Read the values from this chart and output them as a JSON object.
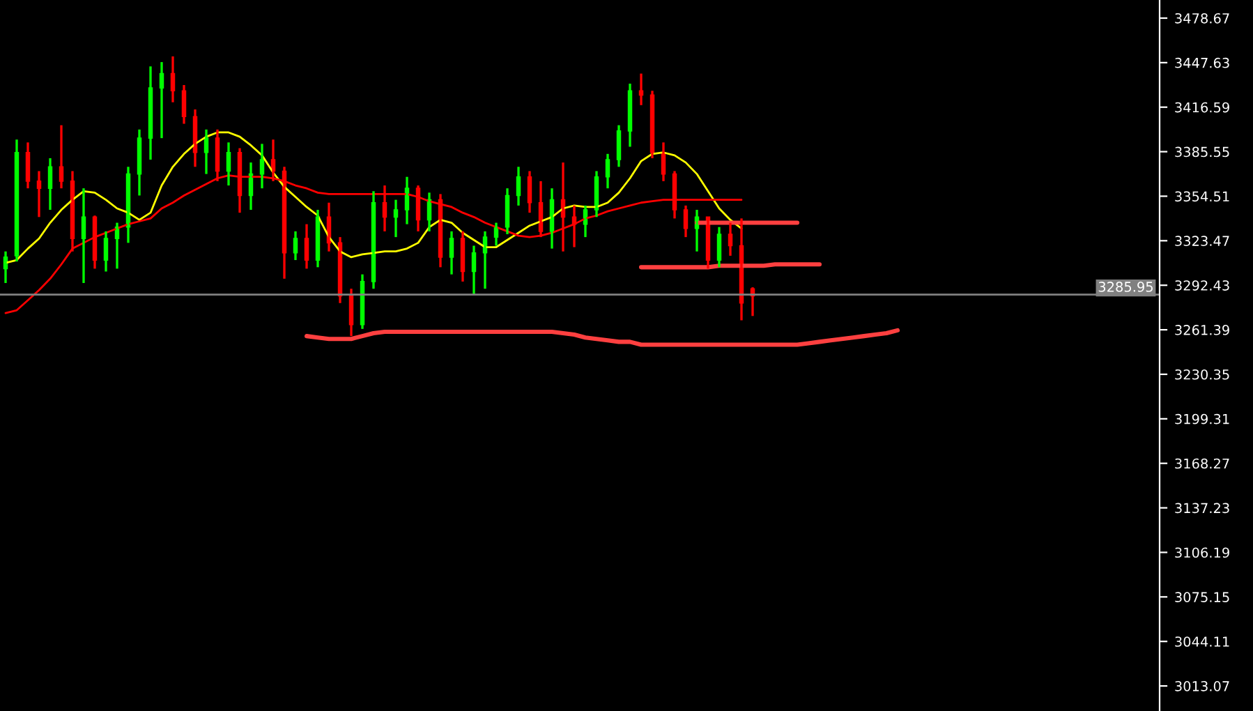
{
  "chart_data": {
    "type": "candlestick",
    "categories": [
      null,
      null,
      null,
      null,
      null,
      null,
      null,
      null,
      null,
      null,
      null,
      null,
      null,
      null,
      null,
      null,
      null,
      null,
      null,
      null,
      null,
      null,
      null,
      null,
      null,
      null,
      null,
      null,
      null,
      null,
      null,
      null,
      null,
      null,
      null,
      null,
      null,
      null,
      null,
      null,
      null,
      null,
      null,
      null,
      null,
      null,
      null,
      null,
      null,
      null,
      null,
      null,
      null,
      null,
      null,
      null,
      null,
      null,
      null,
      null,
      null,
      null,
      null,
      null,
      null,
      null,
      null,
      null,
      null,
      null,
      null,
      null,
      null,
      null,
      null,
      null,
      null,
      null,
      null,
      null,
      null,
      null,
      null,
      null,
      null,
      null,
      null,
      null,
      null,
      null,
      null,
      null,
      null,
      null,
      null,
      null,
      null,
      null,
      null,
      null,
      null,
      null,
      null,
      null
    ],
    "ohlc": [
      [
        3304,
        3316,
        3294,
        3312
      ],
      [
        3313,
        3394,
        3309,
        3385
      ],
      [
        3385,
        3392,
        3360,
        3365
      ],
      [
        3365,
        3372,
        3340,
        3360
      ],
      [
        3360,
        3381,
        3345,
        3375
      ],
      [
        3375,
        3404,
        3360,
        3365
      ],
      [
        3365,
        3372,
        3316,
        3325
      ],
      [
        3325,
        3360,
        3294,
        3340
      ],
      [
        3340,
        3341,
        3304,
        3310
      ],
      [
        3310,
        3330,
        3302,
        3325
      ],
      [
        3325,
        3336,
        3304,
        3333
      ],
      [
        3333,
        3375,
        3322,
        3370
      ],
      [
        3370,
        3401,
        3355,
        3395
      ],
      [
        3395,
        3445,
        3380,
        3430
      ],
      [
        3430,
        3448,
        3395,
        3440
      ],
      [
        3440,
        3452,
        3420,
        3428
      ],
      [
        3428,
        3432,
        3405,
        3410
      ],
      [
        3410,
        3415,
        3375,
        3385
      ],
      [
        3385,
        3401,
        3370,
        3395
      ],
      [
        3395,
        3401,
        3365,
        3372
      ],
      [
        3372,
        3392,
        3362,
        3385
      ],
      [
        3385,
        3388,
        3343,
        3355
      ],
      [
        3355,
        3378,
        3345,
        3370
      ],
      [
        3370,
        3391,
        3360,
        3380
      ],
      [
        3380,
        3394,
        3365,
        3372
      ],
      [
        3372,
        3375,
        3297,
        3315
      ],
      [
        3315,
        3330,
        3310,
        3325
      ],
      [
        3325,
        3335,
        3304,
        3310
      ],
      [
        3310,
        3345,
        3305,
        3340
      ],
      [
        3340,
        3350,
        3316,
        3322
      ],
      [
        3322,
        3326,
        3280,
        3285
      ],
      [
        3285,
        3290,
        3257,
        3265
      ],
      [
        3265,
        3300,
        3262,
        3295
      ],
      [
        3295,
        3358,
        3290,
        3350
      ],
      [
        3350,
        3362,
        3330,
        3340
      ],
      [
        3340,
        3352,
        3326,
        3345
      ],
      [
        3345,
        3368,
        3335,
        3360
      ],
      [
        3360,
        3362,
        3330,
        3338
      ],
      [
        3338,
        3357,
        3330,
        3352
      ],
      [
        3352,
        3356,
        3305,
        3312
      ],
      [
        3312,
        3330,
        3300,
        3325
      ],
      [
        3325,
        3330,
        3295,
        3302
      ],
      [
        3302,
        3320,
        3286,
        3315
      ],
      [
        3315,
        3330,
        3290,
        3326
      ],
      [
        3326,
        3336,
        3320,
        3333
      ],
      [
        3333,
        3360,
        3328,
        3355
      ],
      [
        3355,
        3375,
        3348,
        3368
      ],
      [
        3368,
        3372,
        3343,
        3350
      ],
      [
        3350,
        3365,
        3326,
        3330
      ],
      [
        3330,
        3360,
        3318,
        3352
      ],
      [
        3352,
        3378,
        3316,
        3340
      ],
      [
        3340,
        3348,
        3319,
        3335
      ],
      [
        3335,
        3348,
        3326,
        3345
      ],
      [
        3345,
        3372,
        3340,
        3368
      ],
      [
        3368,
        3384,
        3360,
        3380
      ],
      [
        3380,
        3404,
        3375,
        3400
      ],
      [
        3400,
        3433,
        3389,
        3428
      ],
      [
        3428,
        3440,
        3418,
        3425
      ],
      [
        3425,
        3428,
        3381,
        3385
      ],
      [
        3385,
        3392,
        3365,
        3370
      ],
      [
        3370,
        3372,
        3339,
        3345
      ],
      [
        3345,
        3348,
        3326,
        3332
      ],
      [
        3332,
        3345,
        3316,
        3340
      ],
      [
        3340,
        3340,
        3304,
        3310
      ],
      [
        3310,
        3333,
        3305,
        3328
      ],
      [
        3328,
        3336,
        3313,
        3320
      ],
      [
        3320,
        3339,
        3268,
        3280
      ],
      [
        3290,
        3291,
        3271,
        3285
      ],
      null,
      null,
      null,
      null,
      null,
      null,
      null,
      null,
      null,
      null,
      null,
      null,
      null,
      null,
      null,
      null,
      null,
      null,
      null,
      null,
      null,
      null,
      null,
      null,
      null,
      null,
      null,
      null,
      null,
      null,
      null,
      null,
      null,
      null,
      null,
      null
    ],
    "colors": [
      "#00ff00",
      "#00ff00",
      "#ff0000",
      "#ff0000",
      "#00ff00",
      "#ff0000",
      "#ff0000",
      "#00ff00",
      "#ff0000",
      "#00ff00",
      "#00ff00",
      "#00ff00",
      "#00ff00",
      "#00ff00",
      "#00ff00",
      "#ff0000",
      "#ff0000",
      "#ff0000",
      "#00ff00",
      "#ff0000",
      "#00ff00",
      "#ff0000",
      "#00ff00",
      "#00ff00",
      "#ff0000",
      "#ff0000",
      "#00ff00",
      "#ff0000",
      "#00ff00",
      "#ff0000",
      "#ff0000",
      "#ff0000",
      "#00ff00",
      "#00ff00",
      "#ff0000",
      "#00ff00",
      "#00ff00",
      "#ff0000",
      "#00ff00",
      "#ff0000",
      "#00ff00",
      "#ff0000",
      "#00ff00",
      "#00ff00",
      "#00ff00",
      "#00ff00",
      "#00ff00",
      "#ff0000",
      "#ff0000",
      "#00ff00",
      "#ff0000",
      "#ff0000",
      "#00ff00",
      "#00ff00",
      "#00ff00",
      "#00ff00",
      "#00ff00",
      "#ff0000",
      "#ff0000",
      "#ff0000",
      "#ff0000",
      "#ff0000",
      "#00ff00",
      "#ff0000",
      "#00ff00",
      "#ff0000",
      "#ff0000",
      "#ff0000",
      null,
      null,
      null,
      null,
      null,
      null,
      null,
      null,
      null,
      null,
      null,
      null,
      null,
      null,
      null,
      null,
      null,
      null,
      null,
      null,
      null,
      null,
      null,
      null,
      null,
      null,
      null,
      null,
      null,
      null,
      null,
      null,
      null,
      null,
      null,
      null
    ],
    "series": [
      {
        "type": "line",
        "color": "#ffff00",
        "values": [
          3308,
          3310,
          3318,
          3325,
          3336,
          3345,
          3352,
          3358,
          3357,
          3352,
          3346,
          3343,
          3338,
          3343,
          3362,
          3375,
          3384,
          3391,
          3396,
          3399,
          3399,
          3396,
          3390,
          3383,
          3371,
          3361,
          3354,
          3347,
          3341,
          3326,
          3316,
          3312,
          3314,
          3315,
          3316,
          3316,
          3318,
          3322,
          3333,
          3338,
          3336,
          3329,
          3324,
          3319,
          3319,
          3324,
          3329,
          3334,
          3337,
          3340,
          3346,
          3348,
          3347,
          3347,
          3350,
          3357,
          3367,
          3379,
          3384,
          3385,
          3383,
          3378,
          3370,
          3358,
          3346,
          3338,
          3332,
          null,
          null,
          null,
          null,
          null,
          null,
          null,
          null,
          null,
          null,
          null,
          null,
          null,
          null,
          null,
          null,
          null,
          null,
          null,
          null,
          null,
          null,
          null,
          null,
          null,
          null,
          null,
          null,
          null,
          null,
          null,
          null,
          null,
          null,
          null,
          null,
          null
        ]
      },
      {
        "type": "line",
        "color": "#ff0000",
        "values": [
          3273,
          3275,
          3282,
          3289,
          3297,
          3307,
          3318,
          3322,
          3326,
          3329,
          3332,
          3335,
          3337,
          3339,
          3346,
          3350,
          3355,
          3359,
          3363,
          3367,
          3369,
          3368,
          3368,
          3368,
          3367,
          3365,
          3362,
          3360,
          3357,
          3356,
          3356,
          3356,
          3356,
          3356,
          3356,
          3356,
          3356,
          3354,
          3351,
          3349,
          3347,
          3343,
          3340,
          3336,
          3333,
          3330,
          3327,
          3326,
          3327,
          3329,
          3332,
          3335,
          3339,
          3341,
          3344,
          3346,
          3348,
          3350,
          3351,
          3352,
          3352,
          3352,
          3352,
          3352,
          3352,
          3352,
          3352,
          null,
          null,
          null,
          null,
          null,
          null,
          null,
          null,
          null,
          null,
          null,
          null,
          null,
          null,
          null,
          null,
          null,
          null,
          null,
          null,
          null,
          null,
          null,
          null,
          null,
          null,
          null,
          null,
          null,
          null,
          null,
          null,
          null,
          null,
          null,
          null,
          null
        ]
      },
      {
        "type": "line",
        "color": "#ff4040",
        "values": [
          null,
          null,
          null,
          null,
          null,
          null,
          null,
          null,
          null,
          null,
          null,
          null,
          null,
          null,
          null,
          null,
          null,
          null,
          null,
          null,
          null,
          null,
          null,
          null,
          null,
          null,
          null,
          null,
          null,
          null,
          null,
          null,
          null,
          null,
          null,
          null,
          null,
          null,
          null,
          null,
          null,
          null,
          null,
          null,
          null,
          null,
          null,
          null,
          null,
          null,
          null,
          null,
          null,
          null,
          null,
          null,
          null,
          null,
          null,
          null,
          null,
          null,
          3336,
          3336,
          3336,
          3336,
          3336,
          3336,
          3336,
          3336,
          3336,
          3336,
          null,
          null,
          null,
          null,
          null,
          null,
          null,
          null,
          null,
          null,
          null,
          null,
          null,
          null,
          null,
          null,
          null,
          null,
          null,
          null,
          null,
          null,
          null,
          null,
          null,
          null,
          null,
          null,
          null,
          null,
          null,
          null
        ]
      },
      {
        "type": "line",
        "color": "#ff4040",
        "values": [
          null,
          null,
          null,
          null,
          null,
          null,
          null,
          null,
          null,
          null,
          null,
          null,
          null,
          null,
          null,
          null,
          null,
          null,
          null,
          null,
          null,
          null,
          null,
          null,
          null,
          null,
          null,
          null,
          null,
          null,
          null,
          null,
          null,
          null,
          null,
          null,
          null,
          null,
          null,
          null,
          null,
          null,
          null,
          null,
          null,
          null,
          null,
          null,
          null,
          null,
          null,
          null,
          null,
          null,
          null,
          null,
          null,
          3305,
          3305,
          3305,
          3305,
          3305,
          3305,
          3305,
          3306,
          3306,
          3306,
          3306,
          3306,
          3307,
          3307,
          3307,
          3307,
          3307,
          null,
          null,
          null,
          null,
          null,
          null,
          null,
          null,
          null,
          null,
          null,
          null,
          null,
          null,
          null,
          null,
          null,
          null,
          null,
          null,
          null,
          null,
          null,
          null,
          null,
          null,
          null,
          null,
          null,
          null
        ]
      },
      {
        "type": "line",
        "color": "#ff4040",
        "values": [
          null,
          null,
          null,
          null,
          null,
          null,
          null,
          null,
          null,
          null,
          null,
          null,
          null,
          null,
          null,
          null,
          null,
          null,
          null,
          null,
          null,
          null,
          null,
          null,
          null,
          null,
          null,
          3257,
          3256,
          3255,
          3255,
          3255,
          3257,
          3259,
          3260,
          3260,
          3260,
          3260,
          3260,
          3260,
          3260,
          3260,
          3260,
          3260,
          3260,
          3260,
          3260,
          3260,
          3260,
          3260,
          3259,
          3258,
          3256,
          3255,
          3254,
          3253,
          3253,
          3251,
          3251,
          3251,
          3251,
          3251,
          3251,
          3251,
          3251,
          3251,
          3251,
          3251,
          3251,
          3251,
          3251,
          3251,
          3252,
          3253,
          3254,
          3255,
          3256,
          3257,
          3258,
          3259,
          3261,
          null,
          null,
          null,
          null,
          null,
          null,
          null,
          null,
          null,
          null,
          null,
          null,
          null,
          null,
          null,
          null,
          null,
          null,
          null,
          null,
          null,
          null,
          null
        ]
      }
    ],
    "ylim": [
      2995.6,
      3491.3
    ],
    "yticks": [
      3013.07,
      3044.11,
      3075.15,
      3106.19,
      3137.23,
      3168.27,
      3199.31,
      3230.35,
      3261.39,
      3292.43,
      3323.47,
      3354.51,
      3385.55,
      3416.59,
      3447.63,
      3478.67
    ],
    "ref_lines": [
      {
        "axis": "y",
        "value": 3285.95,
        "label": "3285.95",
        "color": "#808080"
      }
    ],
    "tick_labels": "y",
    "grid": false,
    "legend": false
  }
}
